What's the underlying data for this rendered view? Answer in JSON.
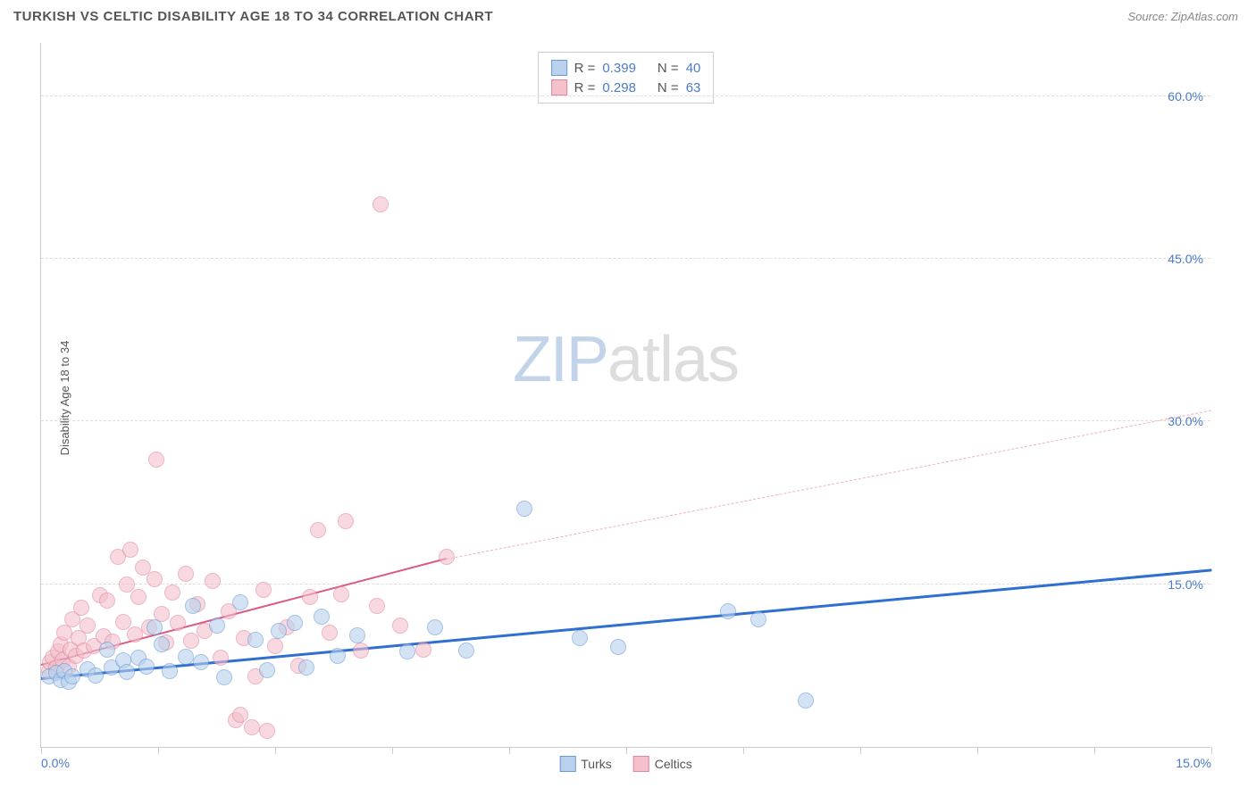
{
  "header": {
    "title": "TURKISH VS CELTIC DISABILITY AGE 18 TO 34 CORRELATION CHART",
    "source": "Source: ZipAtlas.com"
  },
  "y_axis_label": "Disability Age 18 to 34",
  "watermark": {
    "part1": "ZIP",
    "part2": "atlas"
  },
  "chart": {
    "type": "scatter",
    "xlim": [
      0,
      15
    ],
    "ylim": [
      0,
      65
    ],
    "background_color": "#ffffff",
    "grid_color": "#dddddd",
    "y_gridlines": [
      15,
      30,
      45,
      60
    ],
    "y_tick_labels": [
      "15.0%",
      "30.0%",
      "45.0%",
      "60.0%"
    ],
    "x_ticks": [
      0,
      1.5,
      3,
      4.5,
      6,
      7.5,
      9,
      10.5,
      12,
      13.5,
      15
    ],
    "x_tick_labels": {
      "left": "0.0%",
      "right": "15.0%"
    },
    "marker_radius": 9,
    "marker_border_width": 1,
    "series": {
      "turks": {
        "label": "Turks",
        "fill": "#b9d1ec",
        "stroke": "#6a9bd8",
        "fill_opacity": 0.6,
        "trend_color": "#2f6fd0",
        "trend_width": 2.5,
        "r_value": "0.399",
        "n_value": "40",
        "trend": {
          "x1": 0,
          "y1": 6.2,
          "x2": 15,
          "y2": 16.2
        },
        "points": [
          [
            0.1,
            6.5
          ],
          [
            0.2,
            6.8
          ],
          [
            0.25,
            6.2
          ],
          [
            0.3,
            7.0
          ],
          [
            0.35,
            6.0
          ],
          [
            0.4,
            6.5
          ],
          [
            0.6,
            7.2
          ],
          [
            0.7,
            6.6
          ],
          [
            0.85,
            9.0
          ],
          [
            0.9,
            7.3
          ],
          [
            1.05,
            8.0
          ],
          [
            1.1,
            6.9
          ],
          [
            1.25,
            8.2
          ],
          [
            1.35,
            7.4
          ],
          [
            1.45,
            11.0
          ],
          [
            1.55,
            9.5
          ],
          [
            1.65,
            7.0
          ],
          [
            1.85,
            8.3
          ],
          [
            1.95,
            13.0
          ],
          [
            2.05,
            7.8
          ],
          [
            2.25,
            11.2
          ],
          [
            2.35,
            6.4
          ],
          [
            2.55,
            13.3
          ],
          [
            2.75,
            9.9
          ],
          [
            2.9,
            7.1
          ],
          [
            3.05,
            10.7
          ],
          [
            3.25,
            11.4
          ],
          [
            3.4,
            7.3
          ],
          [
            3.6,
            12.0
          ],
          [
            3.8,
            8.4
          ],
          [
            4.05,
            10.3
          ],
          [
            4.7,
            8.8
          ],
          [
            5.05,
            11.0
          ],
          [
            5.45,
            8.9
          ],
          [
            6.2,
            22.0
          ],
          [
            6.9,
            10.0
          ],
          [
            7.4,
            9.2
          ],
          [
            8.8,
            12.5
          ],
          [
            9.2,
            11.8
          ],
          [
            9.8,
            4.3
          ]
        ]
      },
      "celtics": {
        "label": "Celtics",
        "fill": "#f3c0cb",
        "stroke": "#e285a0",
        "fill_opacity": 0.6,
        "trend_color": "#d95b85",
        "trend_width": 2,
        "trend_dashed_color": "#f0b0c0",
        "r_value": "0.298",
        "n_value": "63",
        "trend_solid": {
          "x1": 0,
          "y1": 7.5,
          "x2": 5.2,
          "y2": 17.3
        },
        "trend_dashed": {
          "x1": 5.2,
          "y1": 17.3,
          "x2": 15,
          "y2": 31.0
        },
        "points": [
          [
            0.1,
            7.0
          ],
          [
            0.12,
            7.8
          ],
          [
            0.15,
            8.2
          ],
          [
            0.2,
            7.3
          ],
          [
            0.22,
            8.8
          ],
          [
            0.25,
            9.5
          ],
          [
            0.28,
            8.0
          ],
          [
            0.3,
            10.5
          ],
          [
            0.35,
            7.4
          ],
          [
            0.38,
            9.0
          ],
          [
            0.4,
            11.8
          ],
          [
            0.45,
            8.4
          ],
          [
            0.48,
            10.0
          ],
          [
            0.52,
            12.8
          ],
          [
            0.55,
            8.9
          ],
          [
            0.6,
            11.2
          ],
          [
            0.68,
            9.3
          ],
          [
            0.75,
            14.0
          ],
          [
            0.8,
            10.2
          ],
          [
            0.85,
            13.5
          ],
          [
            0.92,
            9.7
          ],
          [
            0.98,
            17.5
          ],
          [
            1.05,
            11.5
          ],
          [
            1.1,
            15.0
          ],
          [
            1.15,
            18.2
          ],
          [
            1.2,
            10.4
          ],
          [
            1.25,
            13.8
          ],
          [
            1.3,
            16.5
          ],
          [
            1.38,
            11.0
          ],
          [
            1.45,
            15.5
          ],
          [
            1.48,
            26.5
          ],
          [
            1.55,
            12.3
          ],
          [
            1.6,
            9.6
          ],
          [
            1.68,
            14.2
          ],
          [
            1.75,
            11.4
          ],
          [
            1.85,
            16.0
          ],
          [
            1.92,
            9.8
          ],
          [
            2.0,
            13.2
          ],
          [
            2.1,
            10.7
          ],
          [
            2.2,
            15.3
          ],
          [
            2.3,
            8.2
          ],
          [
            2.4,
            12.5
          ],
          [
            2.5,
            2.5
          ],
          [
            2.55,
            3.0
          ],
          [
            2.6,
            10.0
          ],
          [
            2.7,
            1.8
          ],
          [
            2.75,
            6.5
          ],
          [
            2.85,
            14.5
          ],
          [
            2.9,
            1.5
          ],
          [
            3.0,
            9.3
          ],
          [
            3.15,
            11.0
          ],
          [
            3.3,
            7.5
          ],
          [
            3.45,
            13.8
          ],
          [
            3.55,
            20.0
          ],
          [
            3.7,
            10.5
          ],
          [
            3.85,
            14.1
          ],
          [
            3.9,
            20.8
          ],
          [
            4.1,
            8.9
          ],
          [
            4.3,
            13.0
          ],
          [
            4.35,
            50.0
          ],
          [
            4.6,
            11.2
          ],
          [
            4.9,
            9.0
          ],
          [
            5.2,
            17.5
          ]
        ]
      }
    }
  },
  "stats_legend": {
    "r_label": "R  =",
    "n_label": "N  ="
  }
}
